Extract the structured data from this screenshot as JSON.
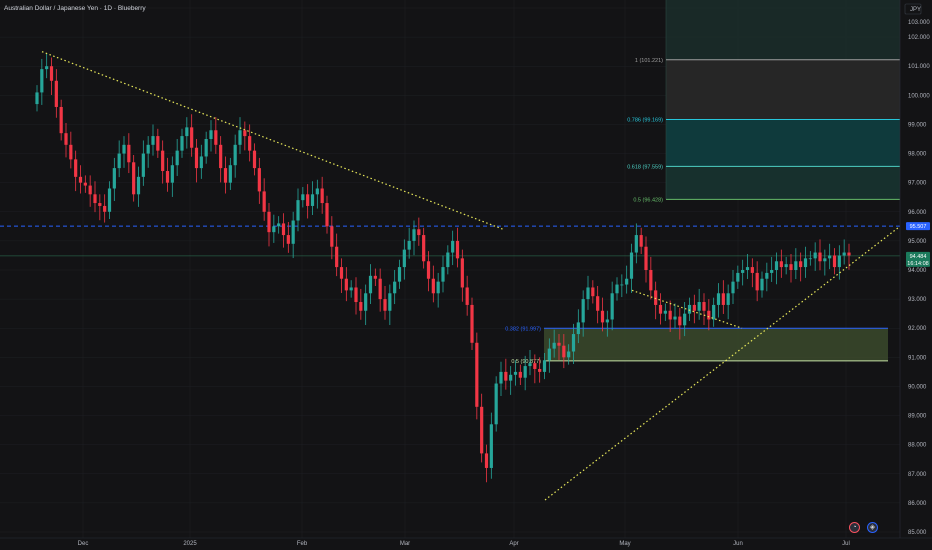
{
  "header": {
    "title": "Australian Dollar / Japanese Yen · 1D · Blueberry"
  },
  "colors": {
    "up": "#26a69a",
    "down": "#f23645",
    "background": "#131315",
    "grid": "#1e2025",
    "trendline": "#e8e85a",
    "dashed": "#2962ff",
    "fib_zone_fill": "#3b4a2c",
    "fib_1": "#9e9e9e",
    "fib_0786": "#26c6da",
    "fib_0618": "#4dd0c4",
    "fib_05": "#66bb6a",
    "fib_0382": "#2962ff"
  },
  "toolbar": {
    "btn_a_icon": "alert-icon",
    "btn_b_icon": "replay-icon"
  },
  "chart_data": {
    "type": "candlestick",
    "title": "Australian Dollar / Japanese Yen · 1D · Blueberry",
    "currency": "JPY",
    "ylim": [
      85.0,
      103.0
    ],
    "y_ticks": [
      "103.000",
      "102.000",
      "101.000",
      "100.000",
      "99.000",
      "98.000",
      "97.000",
      "96.000",
      "95.000",
      "94.000",
      "93.000",
      "92.000",
      "91.000",
      "90.000",
      "89.000",
      "88.000",
      "87.000",
      "86.000",
      "85.000"
    ],
    "x_ticks": [
      "Dec",
      "2025",
      "Feb",
      "Mar",
      "Apr",
      "May",
      "Jun",
      "Jul"
    ],
    "price_tags": {
      "dashed_level": "95.507",
      "last_price": "94.484",
      "countdown": "16:14:08"
    },
    "fib_levels": [
      {
        "label": "1 (101.221)",
        "value": 101.221
      },
      {
        "label": "0.786 (99.169)",
        "value": 99.169
      },
      {
        "label": "0.618 (97.559)",
        "value": 97.559
      },
      {
        "label": "0.5 (96.428)",
        "value": 96.428
      },
      {
        "label": "0.382 (91.997)",
        "value": 91.997
      },
      {
        "label": "0.5 (90.877)",
        "value": 90.877
      }
    ],
    "trendlines": [
      {
        "from": [
          "2024-11-25",
          101.5
        ],
        "to": [
          "2025-04-01",
          95.4
        ]
      },
      {
        "from": [
          "2025-04-07",
          86.1
        ],
        "to": [
          "2025-07-03",
          95.5
        ]
      }
    ],
    "candles_close": [
      100.1,
      100.9,
      101.0,
      100.5,
      99.6,
      98.7,
      98.3,
      97.8,
      97.2,
      97.0,
      96.9,
      96.6,
      96.3,
      96.2,
      96.0,
      96.8,
      97.5,
      98.0,
      98.3,
      97.7,
      96.6,
      97.2,
      98.0,
      98.3,
      98.6,
      98.1,
      97.4,
      97.0,
      97.6,
      98.1,
      98.6,
      98.9,
      98.2,
      97.5,
      97.9,
      98.5,
      98.8,
      98.3,
      97.5,
      97.0,
      97.6,
      98.3,
      98.8,
      98.6,
      98.1,
      97.5,
      96.7,
      96.0,
      95.3,
      95.5,
      95.6,
      95.2,
      94.9,
      95.7,
      96.4,
      96.6,
      96.2,
      96.6,
      96.8,
      96.3,
      95.5,
      94.8,
      94.1,
      93.7,
      93.3,
      93.4,
      92.9,
      92.6,
      93.2,
      93.8,
      93.7,
      93.0,
      92.6,
      93.2,
      93.6,
      94.1,
      94.7,
      95.0,
      95.4,
      95.2,
      94.3,
      93.7,
      93.2,
      93.6,
      94.1,
      94.6,
      95.0,
      94.4,
      93.4,
      92.8,
      91.5,
      89.3,
      87.7,
      87.2,
      88.7,
      90.1,
      90.5,
      90.2,
      90.4,
      90.5,
      90.3,
      90.7,
      90.8,
      90.6,
      90.5,
      90.9,
      91.3,
      91.5,
      91.4,
      91.0,
      91.2,
      91.8,
      92.2,
      93.0,
      93.4,
      93.1,
      92.6,
      92.2,
      92.3,
      93.2,
      93.5,
      93.5,
      93.7,
      94.6,
      95.2,
      94.8,
      94.0,
      93.3,
      92.8,
      92.5,
      92.6,
      92.3,
      92.4,
      92.1,
      92.5,
      92.8,
      92.6,
      92.9,
      92.6,
      92.3,
      92.8,
      93.2,
      92.8,
      93.2,
      93.6,
      93.9,
      94.0,
      94.1,
      93.9,
      93.3,
      93.7,
      93.9,
      94.0,
      94.3,
      94.1,
      94.2,
      94.0,
      94.3,
      94.1,
      94.4,
      94.4,
      94.6,
      94.3,
      94.4,
      94.5,
      94.1,
      94.5,
      94.6,
      94.5
    ]
  }
}
